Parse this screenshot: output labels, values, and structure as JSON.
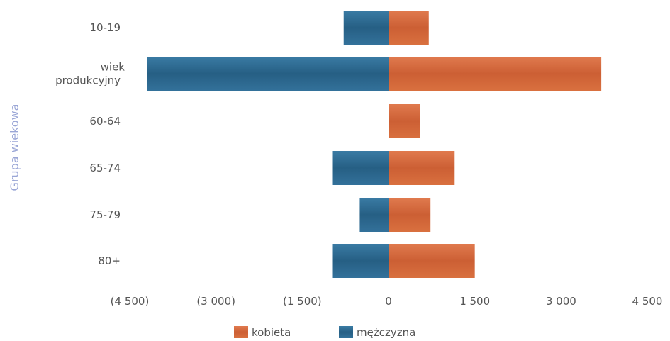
{
  "chart_data": {
    "type": "bar",
    "orientation": "horizontal",
    "stacked": "diverging",
    "ylabel": "Grupa wiekowa",
    "categories": [
      "10-19",
      "wiek\nprodukcyjny",
      "60-64",
      "65-74",
      "75-79",
      "80+"
    ],
    "x_ticks": [
      "(4 500)",
      "(3 000)",
      "(1 500)",
      "0",
      "1 500",
      "3 000",
      "4 500"
    ],
    "x_tick_values": [
      -4500,
      -3000,
      -1500,
      0,
      1500,
      3000,
      4500
    ],
    "xlim": [
      -4500,
      4500
    ],
    "grid": false,
    "legend_position": "bottom",
    "series": [
      {
        "name": "kobieta",
        "values": [
          700,
          3700,
          550,
          1150,
          730,
          1500
        ]
      },
      {
        "name": "mężczyzna",
        "values": [
          -780,
          -4200,
          0,
          -980,
          -500,
          -980
        ]
      }
    ],
    "colors": {
      "kobieta": "#d6693d",
      "mężczyzna": "#2f6e96"
    }
  }
}
